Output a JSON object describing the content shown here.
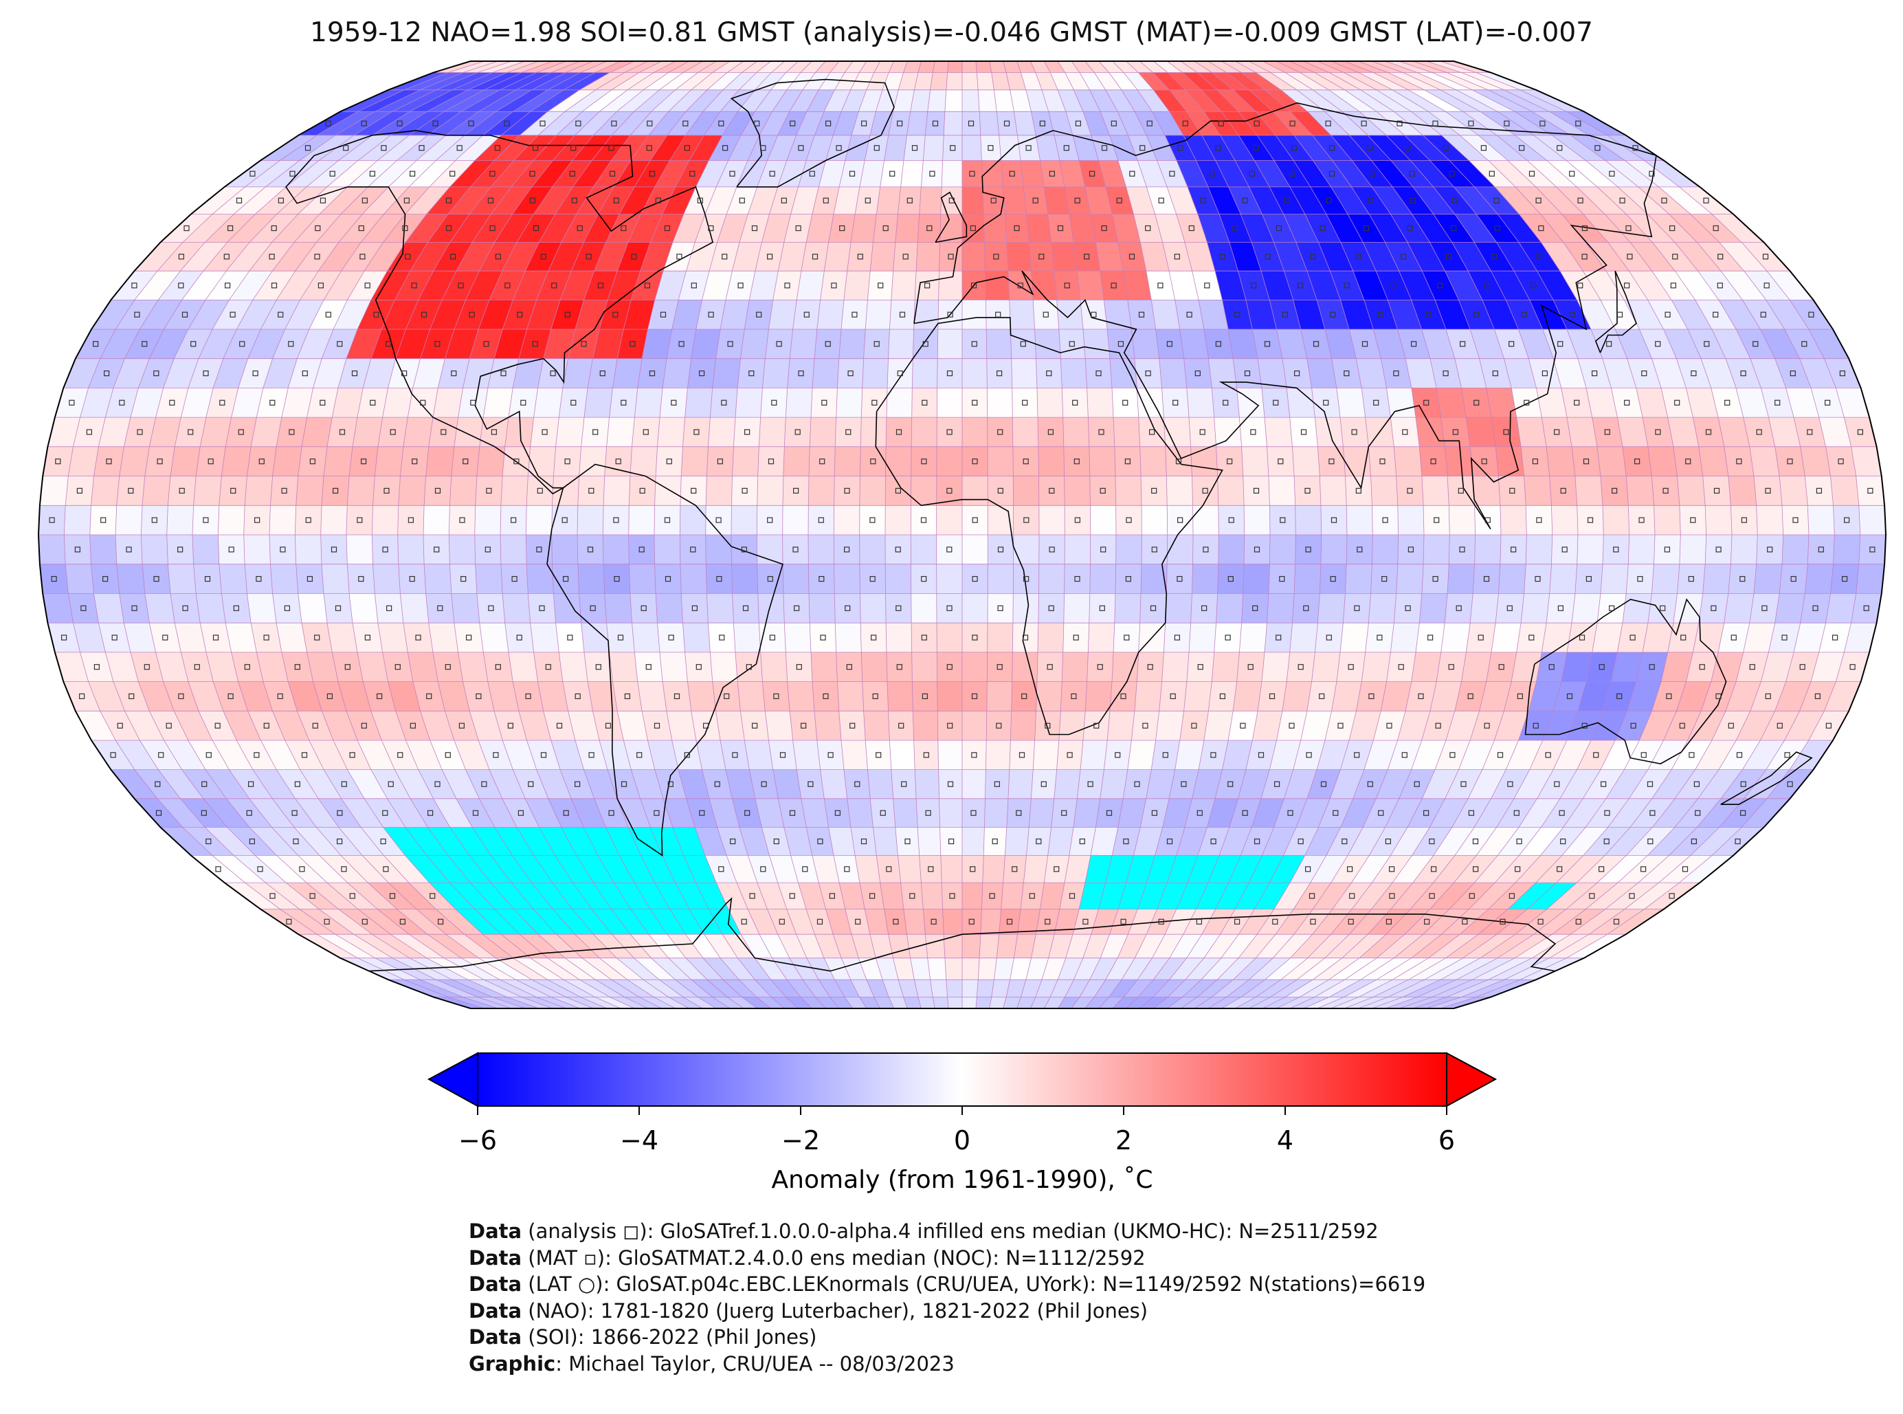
{
  "title": "1959-12 NAO=1.98 SOI=0.81 GMST (analysis)=-0.046 GMST (MAT)=-0.009 GMST (LAT)=-0.007",
  "map": {
    "projection": "Robinson",
    "grid_resolution_deg": 5,
    "colormap": {
      "min_color": "#0000ff",
      "mid_color": "#ffffff",
      "max_color": "#ff0000",
      "missing_color": "#00ffff"
    },
    "gridline_color": "#c080c0",
    "coastline_color": "#000000",
    "symbols": {
      "analysis": "square",
      "mat": "small-square",
      "lat": "circle"
    },
    "anomaly_regions": [
      {
        "name": "North America",
        "lon": [
          -125,
          -65
        ],
        "lat": [
          30,
          70
        ],
        "anomaly": 5.5
      },
      {
        "name": "Siberia / Central Asia",
        "lon": [
          55,
          130
        ],
        "lat": [
          35,
          70
        ],
        "anomaly": -6.0
      },
      {
        "name": "Western Europe",
        "lon": [
          0,
          40
        ],
        "lat": [
          40,
          65
        ],
        "anomaly": 3.5
      },
      {
        "name": "Arctic Russia",
        "lon": [
          60,
          100
        ],
        "lat": [
          70,
          85
        ],
        "anomaly": 4.5
      },
      {
        "name": "Southeast Asia",
        "lon": [
          90,
          110
        ],
        "lat": [
          10,
          25
        ],
        "anomaly": 3.0
      },
      {
        "name": "Australia",
        "lon": [
          115,
          140
        ],
        "lat": [
          -35,
          -20
        ],
        "anomaly": -3.0
      },
      {
        "name": "Western Arctic",
        "lon": [
          -180,
          -120
        ],
        "lat": [
          70,
          85
        ],
        "anomaly": -4.5
      }
    ],
    "missing_regions": [
      {
        "name": "Southern Pacific",
        "lon": [
          -130,
          -60
        ],
        "lat": [
          -70,
          -50
        ]
      },
      {
        "name": "Southern Indian Ocean",
        "lon": [
          30,
          80
        ],
        "lat": [
          -65,
          -55
        ]
      },
      {
        "name": "Southern Indian Ocean East",
        "lon": [
          140,
          150
        ],
        "lat": [
          -65,
          -60
        ]
      }
    ]
  },
  "colorbar": {
    "ticks": [
      "−6",
      "−4",
      "−2",
      "0",
      "2",
      "4",
      "6"
    ],
    "tick_values": [
      -6,
      -4,
      -2,
      0,
      2,
      4,
      6
    ],
    "min": -6,
    "max": 6,
    "extend": "both",
    "label": "Anomaly (from 1961-1990), ˚C"
  },
  "credits": [
    {
      "bold": "Data",
      "text": " (analysis ◻): GloSATref.1.0.0.0-alpha.4 infilled ens median (UKMO-HC): N=2511/2592"
    },
    {
      "bold": "Data",
      "text": " (MAT ▫): GloSATMAT.2.4.0.0 ens median (NOC): N=1112/2592"
    },
    {
      "bold": "Data",
      "text": " (LAT ○): GloSAT.p04c.EBC.LEKnormals (CRU/UEA, UYork): N=1149/2592 N(stations)=6619"
    },
    {
      "bold": "Data",
      "text": " (NAO): 1781-1820 (Juerg Luterbacher), 1821-2022 (Phil Jones)"
    },
    {
      "bold": "Data",
      "text": " (SOI): 1866-2022 (Phil Jones)"
    },
    {
      "bold": "Graphic",
      "text": ": Michael Taylor, CRU/UEA -- 08/03/2023"
    }
  ]
}
